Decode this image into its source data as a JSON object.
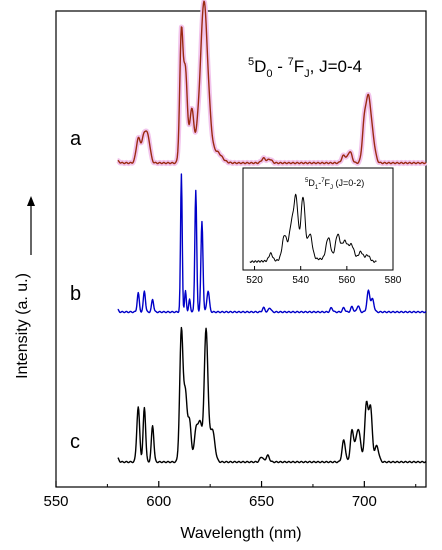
{
  "chart_data": [
    {
      "type": "line",
      "xlabel": "Wavelength (nm)",
      "ylabel": "Intensity (a. u.)",
      "xlim": [
        550,
        730
      ],
      "x_ticks": [
        550,
        600,
        650,
        700
      ],
      "y_ticks_shown": false,
      "grid": false,
      "annotation": {
        "prefix_sup": "5",
        "d_letter": "D",
        "d_sub": "0",
        "dash": " - ",
        "f_sup": "7",
        "f_letter": "F",
        "f_sub": "J",
        "suffix": ", J=0-4"
      },
      "series": [
        {
          "name": "a",
          "color": "#9b2a12",
          "glow": "#f2c4ec",
          "baseline": 0.0,
          "peaks": [
            [
              580,
              0.02,
              0.8
            ],
            [
              590,
              0.25,
              1.0
            ],
            [
              593,
              0.3,
              1.2
            ],
            [
              595,
              0.2,
              1.0
            ],
            [
              611,
              1.35,
              0.8
            ],
            [
              613,
              0.95,
              0.9
            ],
            [
              616,
              0.55,
              1.0
            ],
            [
              620,
              0.55,
              1.6
            ],
            [
              622,
              1.25,
              1.3
            ],
            [
              624,
              0.55,
              1.4
            ],
            [
              628,
              0.12,
              2.5
            ],
            [
              651,
              0.05,
              1.0
            ],
            [
              654,
              0.04,
              1.0
            ],
            [
              690,
              0.08,
              1.0
            ],
            [
              693,
              0.12,
              1.0
            ],
            [
              700,
              0.4,
              1.0
            ],
            [
              702,
              0.6,
              1.1
            ],
            [
              704,
              0.25,
              1.2
            ]
          ]
        },
        {
          "name": "b",
          "color": "#0000c8",
          "baseline": 0.0,
          "peaks": [
            [
              580,
              0.02,
              0.5
            ],
            [
              590,
              0.18,
              0.5
            ],
            [
              593,
              0.2,
              0.5
            ],
            [
              597,
              0.12,
              0.5
            ],
            [
              611,
              1.3,
              0.4
            ],
            [
              613,
              0.2,
              0.4
            ],
            [
              615,
              0.12,
              0.4
            ],
            [
              618,
              1.15,
              0.45
            ],
            [
              621,
              0.85,
              0.5
            ],
            [
              624,
              0.2,
              0.6
            ],
            [
              651,
              0.04,
              0.6
            ],
            [
              654,
              0.04,
              0.6
            ],
            [
              684,
              0.04,
              0.6
            ],
            [
              690,
              0.04,
              0.6
            ],
            [
              694,
              0.05,
              0.6
            ],
            [
              697,
              0.06,
              0.6
            ],
            [
              702,
              0.2,
              0.7
            ],
            [
              704,
              0.12,
              0.7
            ]
          ]
        },
        {
          "name": "c",
          "color": "#000000",
          "baseline": 0.0,
          "peaks": [
            [
              580,
              0.05,
              0.6
            ],
            [
              590,
              0.75,
              0.7
            ],
            [
              593,
              0.75,
              0.6
            ],
            [
              597,
              0.5,
              0.6
            ],
            [
              611,
              1.8,
              0.8
            ],
            [
              613,
              0.9,
              0.8
            ],
            [
              615,
              0.55,
              0.8
            ],
            [
              618,
              0.4,
              0.8
            ],
            [
              620,
              0.55,
              1.0
            ],
            [
              623,
              1.8,
              0.9
            ],
            [
              626,
              0.45,
              1.2
            ],
            [
              650,
              0.07,
              0.8
            ],
            [
              653,
              0.09,
              0.8
            ],
            [
              690,
              0.3,
              0.8
            ],
            [
              694,
              0.42,
              0.8
            ],
            [
              697,
              0.45,
              1.2
            ],
            [
              701,
              0.8,
              0.8
            ],
            [
              703,
              0.75,
              0.8
            ],
            [
              706,
              0.22,
              1.0
            ]
          ]
        }
      ]
    },
    {
      "type": "line",
      "xlim": [
        515,
        580
      ],
      "x_ticks": [
        520,
        540,
        560,
        580
      ],
      "annotation": {
        "prefix_sup": "5",
        "d_letter": "D",
        "d_sub": "1",
        "dash": "-",
        "f_sup": "7",
        "f_letter": "F",
        "f_sub": "J",
        "suffix": " (J=0-2)"
      },
      "series": [
        {
          "color": "#000000",
          "peaks": [
            [
              527,
              0.12,
              0.8
            ],
            [
              533,
              0.4,
              1.0
            ],
            [
              536,
              0.55,
              1.0
            ],
            [
              538,
              0.95,
              0.9
            ],
            [
              541,
              1.0,
              0.9
            ],
            [
              544,
              0.4,
              1.0
            ],
            [
              552,
              0.35,
              1.0
            ],
            [
              556,
              0.4,
              1.0
            ],
            [
              559,
              0.3,
              1.2
            ],
            [
              562,
              0.25,
              1.2
            ],
            [
              566,
              0.15,
              1.0
            ],
            [
              569,
              0.1,
              1.0
            ]
          ]
        }
      ]
    }
  ]
}
